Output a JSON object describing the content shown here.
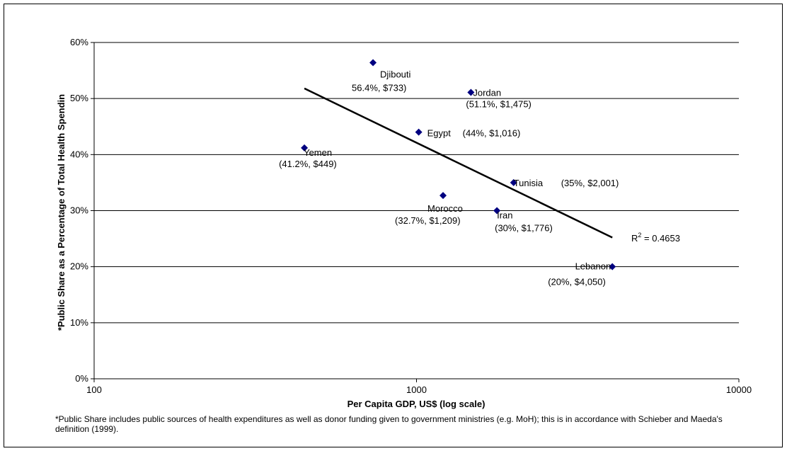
{
  "chart_data": {
    "type": "scatter",
    "title": "",
    "xlabel": "Per Capita GDP, US$ (log scale)",
    "ylabel": "*Public Share as a Percentage of Total Health Spendin",
    "x_scale": "log",
    "xlim": [
      100,
      10000
    ],
    "ylim": [
      0,
      60
    ],
    "x_ticks": [
      "100",
      "1000",
      "10000"
    ],
    "y_ticks": [
      "0%",
      "10%",
      "20%",
      "30%",
      "40%",
      "50%",
      "60%"
    ],
    "grid": "horizontal",
    "marker_color": "#000080",
    "points": [
      {
        "name": "Djibouti",
        "label": "56.4%, $733)",
        "x": 733,
        "y": 56.4
      },
      {
        "name": "Jordan",
        "label": "(51.1%, $1,475)",
        "x": 1475,
        "y": 51.1
      },
      {
        "name": "Egypt",
        "label": "(44%, $1,016)",
        "x": 1016,
        "y": 44.0
      },
      {
        "name": "Yemen",
        "label": "(41.2%, $449)",
        "x": 449,
        "y": 41.2
      },
      {
        "name": "Tunisia",
        "label": "(35%, $2,001)",
        "x": 2001,
        "y": 35.0
      },
      {
        "name": "Morocco",
        "label": "(32.7%, $1,209)",
        "x": 1209,
        "y": 32.7
      },
      {
        "name": "Iran",
        "label": "(30%, $1,776)",
        "x": 1776,
        "y": 30.0
      },
      {
        "name": "Lebanon",
        "label": "(20%, $4,050)",
        "x": 4050,
        "y": 20.0
      }
    ],
    "trendline": {
      "x": [
        449,
        4050
      ],
      "y": [
        51.8,
        25.2
      ],
      "r2_prefix": "R",
      "r2_sup": "2",
      "r2_value": " = 0.4653"
    },
    "footnote": "*Public Share includes public sources of health expenditures as well as donor funding given to government ministries (e.g. MoH); this is in accordance with Schieber and Maeda's definition (1999)."
  }
}
